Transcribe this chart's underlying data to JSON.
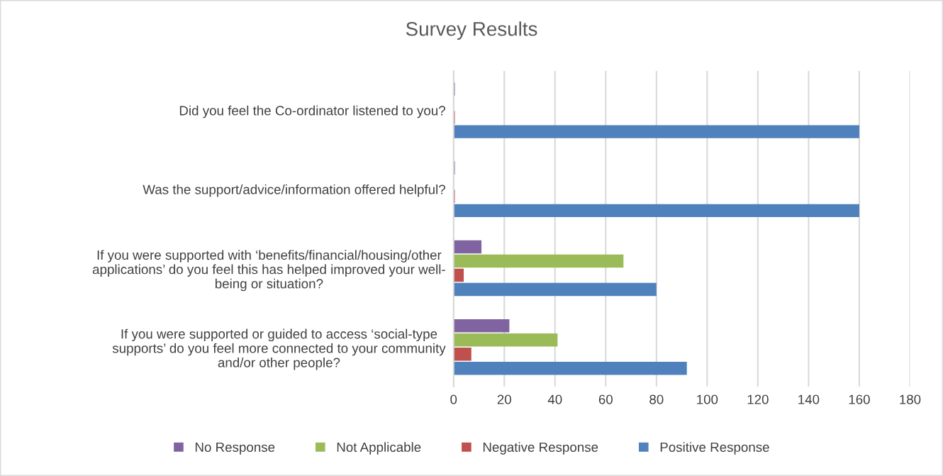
{
  "chart_data": {
    "type": "bar",
    "orientation": "horizontal",
    "title": "Survey Results",
    "categories": [
      "Did you feel the Co-ordinator listened to you?",
      "Was the support/advice/information offered helpful?",
      "If you were supported with ‘benefits/financial/housing/other\napplications’ do you feel this has helped improved your well-\nbeing or situation?",
      "If you were supported or guided to access ‘social-type\nsupports’ do you feel more connected to your community\nand/or other people?"
    ],
    "series": [
      {
        "name": "No Response",
        "color": "#8064a2",
        "values": [
          0.5,
          0.5,
          11,
          22
        ]
      },
      {
        "name": "Not Applicable",
        "color": "#9bbb59",
        "values": [
          0,
          0,
          67,
          41
        ]
      },
      {
        "name": "Negative Response",
        "color": "#c0504d",
        "values": [
          0.5,
          0.5,
          4,
          7
        ]
      },
      {
        "name": "Positive Response",
        "color": "#4f81bd",
        "values": [
          160,
          160,
          80,
          92
        ]
      }
    ],
    "xlim": [
      0,
      180
    ],
    "xticks": [
      0,
      20,
      40,
      60,
      80,
      100,
      120,
      140,
      160,
      180
    ],
    "grid": "x",
    "legend": "bottom"
  }
}
